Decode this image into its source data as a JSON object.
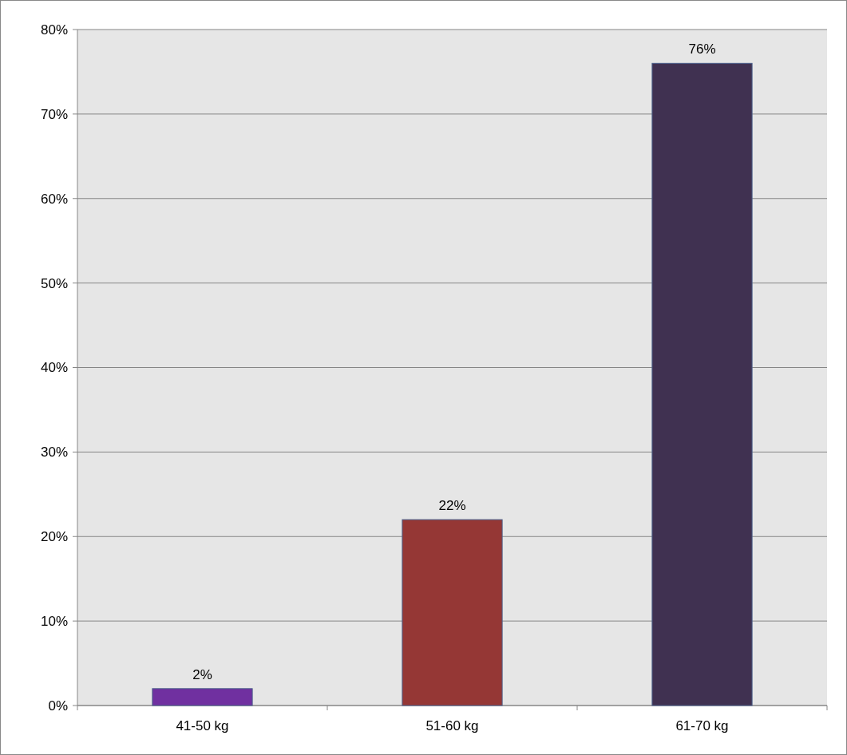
{
  "chart_data": {
    "type": "bar",
    "categories": [
      "41-50 kg",
      "51-60 kg",
      "61-70 kg"
    ],
    "values": [
      2,
      22,
      76
    ],
    "colors": [
      "#7030a0",
      "#953735",
      "#403151"
    ],
    "value_labels": [
      "2%",
      "22%",
      "76%"
    ],
    "ylim": [
      0,
      80
    ],
    "yticks": [
      {
        "value": 0,
        "label": "0%"
      },
      {
        "value": 10,
        "label": "10%"
      },
      {
        "value": 20,
        "label": "20%"
      },
      {
        "value": 30,
        "label": "30%"
      },
      {
        "value": 40,
        "label": "40%"
      },
      {
        "value": 50,
        "label": "50%"
      },
      {
        "value": 60,
        "label": "60%"
      },
      {
        "value": 70,
        "label": "70%"
      },
      {
        "value": 80,
        "label": "80%"
      }
    ],
    "grid": "y"
  }
}
